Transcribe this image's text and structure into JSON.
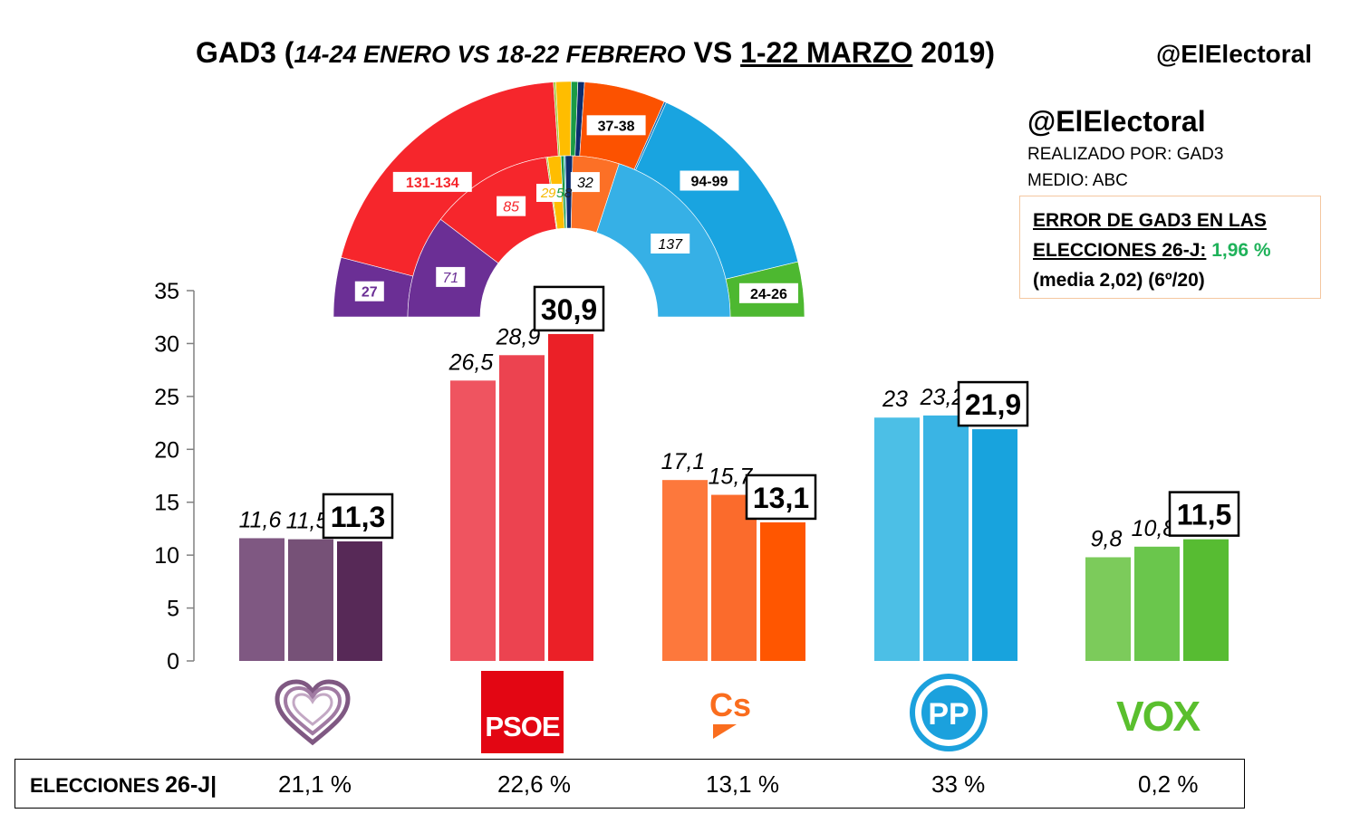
{
  "title": {
    "prefix": "GAD3 (",
    "part1": "14-24 ENERO VS 18-22 FEBRERO",
    "vs": " VS ",
    "highlight": "1-22 MARZO",
    "suffix": " 2019)"
  },
  "handle_top": "@ElElectoral",
  "info": {
    "handle": "@ElElectoral",
    "realizado": "REALIZADO POR: GAD3",
    "medio": "MEDIO: ABC",
    "error_line1": "ERROR DE GAD3 EN LAS",
    "error_line2": "ELECCIONES 26-J:",
    "error_value": " 1,96 %",
    "error_line3": "(media 2,02) (6º/20)"
  },
  "colors": {
    "podemos": [
      "#7f5882",
      "#765177",
      "#572957"
    ],
    "psoe": [
      "#ef5460",
      "#ec4350",
      "#eb2027"
    ],
    "cs": [
      "#fd783c",
      "#fb6b2c",
      "#ff5600"
    ],
    "pp": [
      "#4cbfe6",
      "#3ab4e4",
      "#18a3dd"
    ],
    "vox": [
      "#7ccb5b",
      "#6ac64c",
      "#57bc32"
    ]
  },
  "chart_data": [
    {
      "type": "bar",
      "categories": [
        "Unidas Podemos",
        "PSOE",
        "Cs",
        "PP",
        "VOX"
      ],
      "series": [
        {
          "name": "14-24 ENERO",
          "values": [
            11.6,
            26.5,
            17.1,
            23,
            9.8
          ]
        },
        {
          "name": "18-22 FEBRERO",
          "values": [
            11.5,
            28.9,
            15.7,
            23.2,
            10.8
          ]
        },
        {
          "name": "1-22 MARZO",
          "values": [
            11.3,
            30.9,
            13.1,
            21.9,
            11.5
          ]
        }
      ],
      "data_labels": [
        [
          "11,6",
          "11,5",
          "11,3"
        ],
        [
          "26,5",
          "28,9",
          "30,9"
        ],
        [
          "17,1",
          "15,7",
          "13,1"
        ],
        [
          "23",
          "23,2",
          "21,9"
        ],
        [
          "9,8",
          "10,8",
          "11,5"
        ]
      ],
      "ylim": [
        0,
        35
      ],
      "yticks": [
        0,
        5,
        10,
        15,
        20,
        25,
        30,
        35
      ],
      "grid": false
    },
    {
      "type": "pie",
      "subtype": "hemicycle",
      "outer_ring": [
        {
          "party": "Unidas Podemos",
          "label": "27",
          "value": 27,
          "color": "#6b2f95"
        },
        {
          "party": "PSOE",
          "label": "131-134",
          "value": 132,
          "color": "#f6262c"
        },
        {
          "party": "Otros",
          "label": "",
          "value": 1,
          "color": "#9bc73b"
        },
        {
          "party": "ERC",
          "label": "",
          "value": 7,
          "color": "#ffbd00"
        },
        {
          "party": "Otros",
          "label": "",
          "value": 3,
          "color": "#1a9b45"
        },
        {
          "party": "PNV",
          "label": "",
          "value": 3,
          "color": "#0c2d6e"
        },
        {
          "party": "Cs",
          "label": "37-38",
          "value": 37,
          "color": "#fc5200"
        },
        {
          "party": "Otros",
          "label": "",
          "value": 1,
          "color": "#1673b9"
        },
        {
          "party": "PP",
          "label": "94-99",
          "value": 96,
          "color": "#19a4e0"
        },
        {
          "party": "VOX",
          "label": "24-26",
          "value": 25,
          "color": "#4db830"
        }
      ],
      "inner_ring": [
        {
          "party": "Unidas Podemos",
          "label": "71",
          "value": 71,
          "color": "#6b2f95"
        },
        {
          "party": "PSOE",
          "label": "85",
          "value": 85,
          "color": "#f6262c"
        },
        {
          "party": "Otros",
          "label": "",
          "value": 1,
          "color": "#9bc73b"
        },
        {
          "party": "ERC",
          "label": "9",
          "value": 9,
          "color": "#ffbd00"
        },
        {
          "party": "Otros",
          "label": "",
          "value": 2,
          "color": "#1a9b45"
        },
        {
          "party": "Otros",
          "label": "",
          "value": 1,
          "color": "#14a6ad"
        },
        {
          "party": "PNV",
          "label": "",
          "value": 5,
          "color": "#0c2d6e"
        },
        {
          "party": "Cs",
          "label": "32",
          "value": 32,
          "color": "#fc7026"
        },
        {
          "party": "PP",
          "label": "137",
          "value": 137,
          "color": "#36b0e6"
        }
      ],
      "inner_small_labels": [
        {
          "label": "2",
          "color": "#f5b800"
        },
        {
          "label": "9",
          "color": "#f5b800"
        },
        {
          "label": "5",
          "color": "#1a9b45"
        },
        {
          "label": "8",
          "color": "#222222"
        }
      ]
    }
  ],
  "results_26j": {
    "label": "ELECCIONES ",
    "label_big": "26-J|",
    "values": [
      "21,1 %",
      "22,6  %",
      "13,1 %",
      "33 %",
      "0,2 %"
    ]
  },
  "logos": {
    "psoe": "PSOE",
    "cs": "Cs",
    "pp": "PP",
    "vox": "VOX"
  }
}
